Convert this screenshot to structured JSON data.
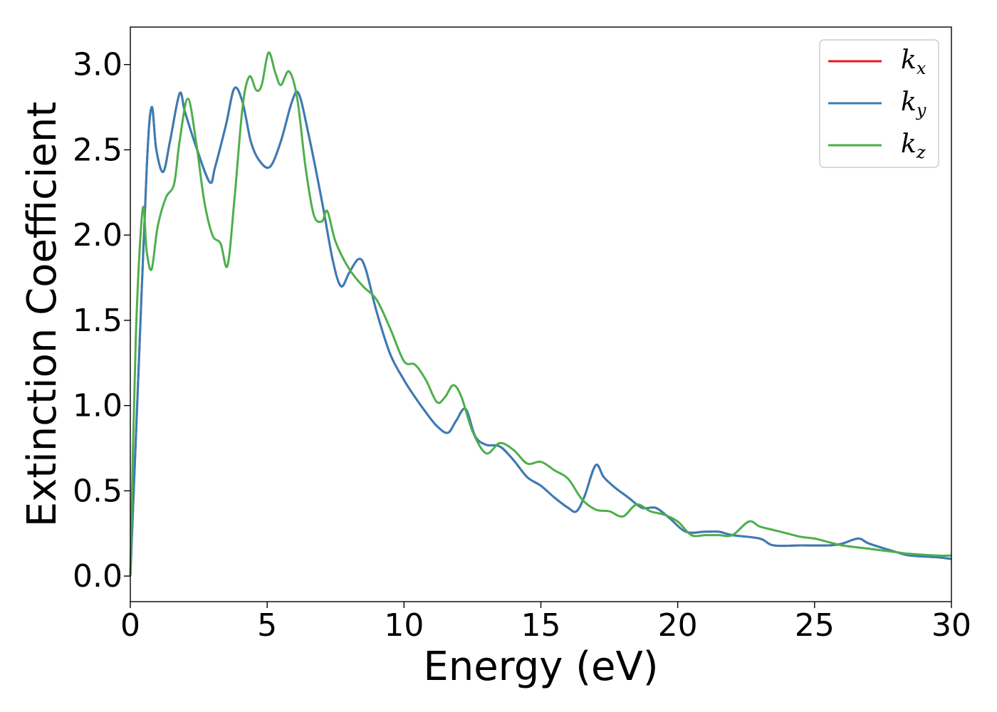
{
  "chart_data": {
    "type": "line",
    "title": "",
    "xlabel": "Energy (eV)",
    "ylabel": "Extinction Coefficient",
    "xlim": [
      0,
      30
    ],
    "ylim": [
      -0.15,
      3.22
    ],
    "xticks": [
      0,
      5,
      10,
      15,
      20,
      25,
      30
    ],
    "yticks": [
      "0.0",
      "0.5",
      "1.0",
      "1.5",
      "2.0",
      "2.5",
      "3.0"
    ],
    "grid": false,
    "legend_position": "top-right",
    "series": [
      {
        "name": "k",
        "subscript": "x",
        "color": "#e41a1c",
        "x": [
          0,
          0.3,
          0.6,
          0.78,
          0.95,
          1.2,
          1.45,
          1.8,
          2.0,
          2.4,
          2.9,
          3.1,
          3.5,
          3.8,
          4.1,
          4.4,
          4.7,
          5.1,
          5.5,
          5.9,
          6.15,
          6.5,
          7.0,
          7.4,
          7.7,
          8.0,
          8.35,
          8.6,
          9.0,
          9.5,
          10.0,
          10.4,
          10.8,
          11.2,
          11.6,
          11.9,
          12.25,
          12.6,
          13.0,
          13.5,
          14.0,
          14.5,
          15.0,
          15.5,
          16.0,
          16.3,
          16.6,
          17.0,
          17.3,
          17.7,
          18.2,
          18.7,
          19.2,
          19.7,
          20.3,
          21.0,
          21.5,
          22.0,
          23.0,
          23.5,
          24.5,
          25.5,
          26.0,
          26.6,
          27.0,
          28.0,
          28.5,
          29.5,
          30.0
        ],
        "values": [
          0.0,
          1.2,
          2.4,
          2.75,
          2.5,
          2.37,
          2.55,
          2.83,
          2.72,
          2.52,
          2.31,
          2.4,
          2.65,
          2.86,
          2.78,
          2.55,
          2.44,
          2.4,
          2.55,
          2.78,
          2.83,
          2.6,
          2.2,
          1.85,
          1.7,
          1.78,
          1.86,
          1.8,
          1.55,
          1.3,
          1.15,
          1.05,
          0.96,
          0.88,
          0.84,
          0.91,
          0.98,
          0.82,
          0.77,
          0.76,
          0.68,
          0.58,
          0.53,
          0.46,
          0.4,
          0.38,
          0.47,
          0.65,
          0.58,
          0.52,
          0.46,
          0.4,
          0.4,
          0.34,
          0.26,
          0.26,
          0.26,
          0.24,
          0.22,
          0.18,
          0.18,
          0.18,
          0.19,
          0.22,
          0.19,
          0.14,
          0.12,
          0.11,
          0.1
        ]
      },
      {
        "name": "k",
        "subscript": "y",
        "color": "#377eb8",
        "x": [
          0,
          0.3,
          0.6,
          0.78,
          0.95,
          1.2,
          1.45,
          1.8,
          2.0,
          2.4,
          2.9,
          3.1,
          3.5,
          3.8,
          4.1,
          4.4,
          4.7,
          5.1,
          5.5,
          5.9,
          6.15,
          6.5,
          7.0,
          7.4,
          7.7,
          8.0,
          8.35,
          8.6,
          9.0,
          9.5,
          10.0,
          10.4,
          10.8,
          11.2,
          11.6,
          11.9,
          12.25,
          12.6,
          13.0,
          13.5,
          14.0,
          14.5,
          15.0,
          15.5,
          16.0,
          16.3,
          16.6,
          17.0,
          17.3,
          17.7,
          18.2,
          18.7,
          19.2,
          19.7,
          20.3,
          21.0,
          21.5,
          22.0,
          23.0,
          23.5,
          24.5,
          25.5,
          26.0,
          26.6,
          27.0,
          28.0,
          28.5,
          29.5,
          30.0
        ],
        "values": [
          0.0,
          1.2,
          2.4,
          2.75,
          2.5,
          2.37,
          2.55,
          2.83,
          2.72,
          2.52,
          2.31,
          2.4,
          2.65,
          2.86,
          2.78,
          2.55,
          2.44,
          2.4,
          2.55,
          2.78,
          2.83,
          2.6,
          2.2,
          1.85,
          1.7,
          1.78,
          1.86,
          1.8,
          1.55,
          1.3,
          1.15,
          1.05,
          0.96,
          0.88,
          0.84,
          0.91,
          0.98,
          0.82,
          0.77,
          0.76,
          0.68,
          0.58,
          0.53,
          0.46,
          0.4,
          0.38,
          0.47,
          0.65,
          0.58,
          0.52,
          0.46,
          0.4,
          0.4,
          0.34,
          0.26,
          0.26,
          0.26,
          0.24,
          0.22,
          0.18,
          0.18,
          0.18,
          0.19,
          0.22,
          0.19,
          0.14,
          0.12,
          0.11,
          0.1
        ]
      },
      {
        "name": "k",
        "subscript": "z",
        "color": "#4daf4a",
        "x": [
          0,
          0.2,
          0.45,
          0.6,
          0.78,
          1.0,
          1.3,
          1.6,
          1.8,
          2.1,
          2.4,
          2.7,
          3.0,
          3.3,
          3.55,
          3.8,
          4.1,
          4.35,
          4.6,
          4.8,
          5.05,
          5.3,
          5.5,
          5.8,
          6.1,
          6.4,
          6.7,
          7.0,
          7.2,
          7.5,
          8.0,
          8.5,
          9.0,
          9.5,
          10.0,
          10.4,
          10.8,
          11.2,
          11.5,
          11.8,
          12.1,
          12.5,
          13.0,
          13.5,
          14.0,
          14.5,
          15.0,
          15.5,
          16.0,
          16.5,
          17.0,
          17.5,
          18.0,
          18.5,
          19.0,
          19.5,
          20.0,
          20.5,
          21.0,
          21.5,
          22.0,
          22.6,
          23.0,
          23.5,
          24.0,
          24.5,
          25.0,
          25.5,
          26.0,
          27.0,
          27.5,
          28.0,
          28.5,
          29.5,
          30.0
        ],
        "values": [
          0.0,
          1.4,
          2.15,
          1.9,
          1.8,
          2.05,
          2.22,
          2.3,
          2.55,
          2.8,
          2.55,
          2.2,
          2.0,
          1.95,
          1.82,
          2.2,
          2.75,
          2.93,
          2.85,
          2.88,
          3.07,
          2.95,
          2.88,
          2.96,
          2.8,
          2.4,
          2.12,
          2.08,
          2.14,
          1.96,
          1.8,
          1.7,
          1.62,
          1.45,
          1.26,
          1.24,
          1.15,
          1.02,
          1.05,
          1.12,
          1.05,
          0.85,
          0.72,
          0.78,
          0.74,
          0.66,
          0.67,
          0.62,
          0.57,
          0.45,
          0.39,
          0.38,
          0.35,
          0.42,
          0.38,
          0.36,
          0.32,
          0.24,
          0.24,
          0.24,
          0.24,
          0.32,
          0.29,
          0.27,
          0.25,
          0.23,
          0.22,
          0.2,
          0.18,
          0.16,
          0.15,
          0.14,
          0.13,
          0.12,
          0.12
        ]
      }
    ]
  }
}
